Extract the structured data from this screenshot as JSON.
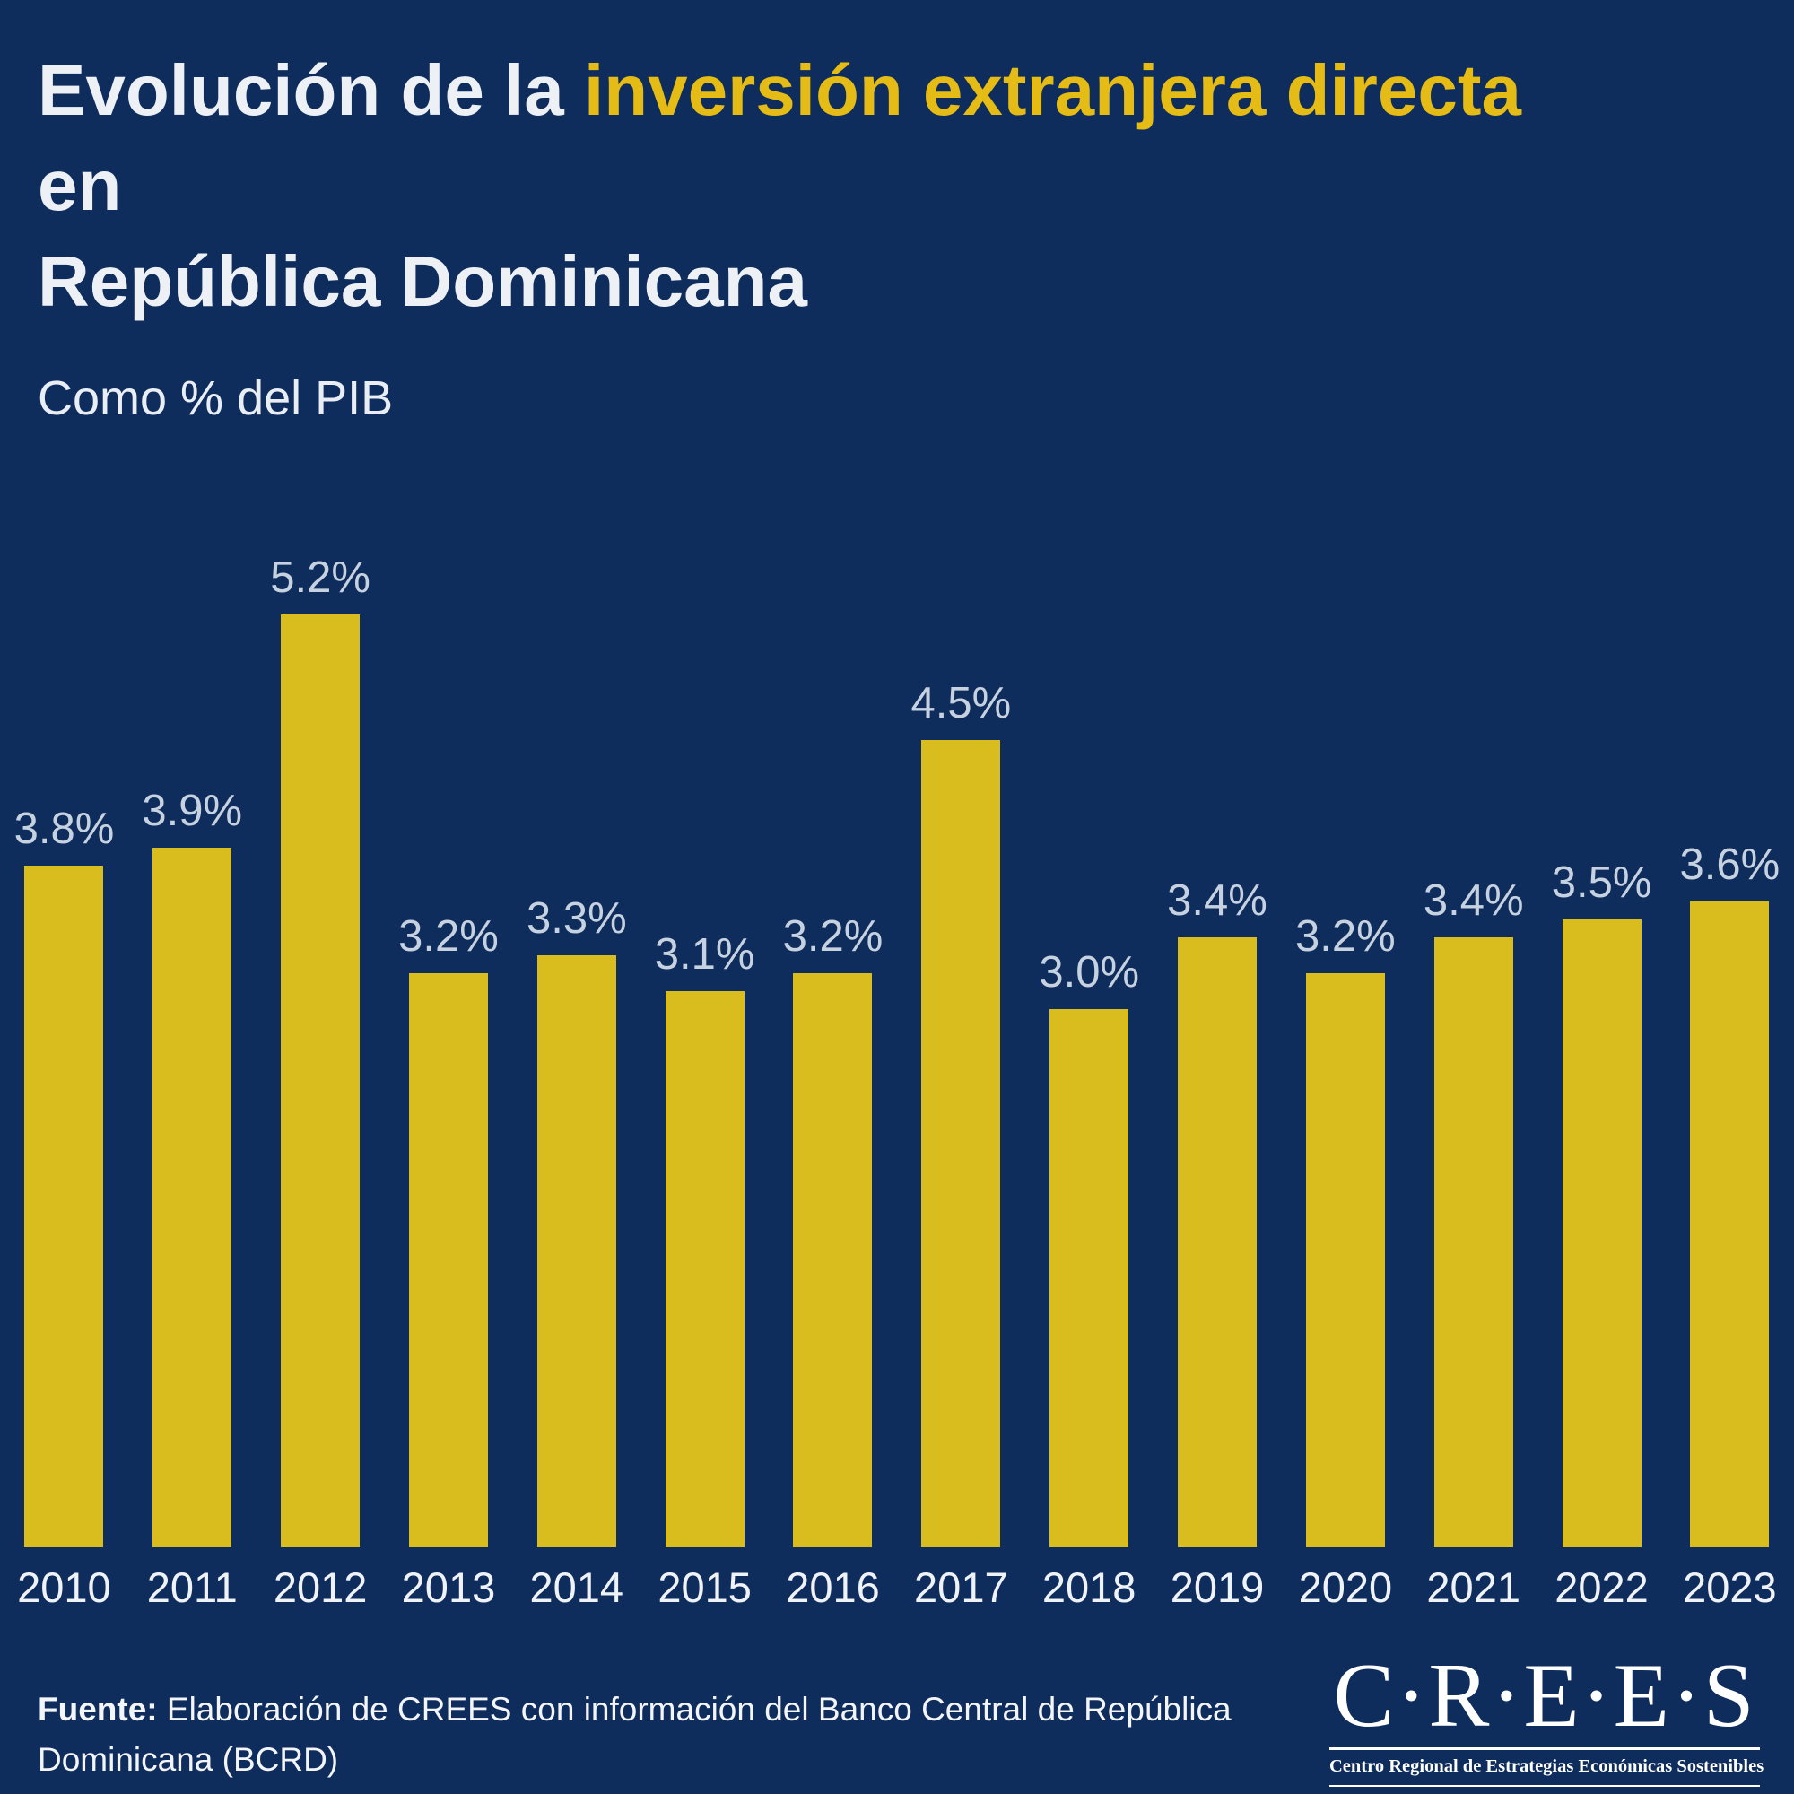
{
  "header": {
    "title_prefix": "Evolución de la",
    "title_accent": "inversión extranjera directa",
    "title_suffix": "en",
    "title_line2": "República Dominicana",
    "subtitle": "Como % del PIB"
  },
  "chart_data": {
    "type": "bar",
    "title": "Evolución de la inversión extranjera directa en República Dominicana",
    "subtitle": "Como % del PIB",
    "xlabel": "",
    "ylabel": "% del PIB",
    "categories": [
      "2010",
      "2011",
      "2012",
      "2013",
      "2014",
      "2015",
      "2016",
      "2017",
      "2018",
      "2019",
      "2020",
      "2021",
      "2022",
      "2023"
    ],
    "values": [
      3.8,
      3.9,
      5.2,
      3.2,
      3.3,
      3.1,
      3.2,
      4.5,
      3.0,
      3.4,
      3.2,
      3.4,
      3.5,
      3.6
    ],
    "labels": [
      "3.8%",
      "3.9%",
      "5.2%",
      "3.2%",
      "3.3%",
      "3.1%",
      "3.2%",
      "4.5%",
      "3.0%",
      "3.4%",
      "3.2%",
      "3.4%",
      "3.5%",
      "3.6%"
    ],
    "ylim": [
      0,
      5.2
    ],
    "grid": false,
    "legend": false,
    "bar_color": "#d9bd1f",
    "value_label_color": "#c7d2e1"
  },
  "footer": {
    "source_label": "Fuente:",
    "source_text": " Elaboración de CREES con información del Banco Central de República Dominicana (BCRD)",
    "logo": {
      "name": "C·R·E·E·S",
      "tagline": "Centro Regional de Estrategias Económicas Sostenibles"
    }
  },
  "colors": {
    "background": "#0e2c5c",
    "accent_gold": "#e5bb16",
    "bar_gold": "#d9bd1f",
    "title_white": "#edf1f6",
    "value_label": "#c7d2e1",
    "year_label": "#eff2f7"
  }
}
